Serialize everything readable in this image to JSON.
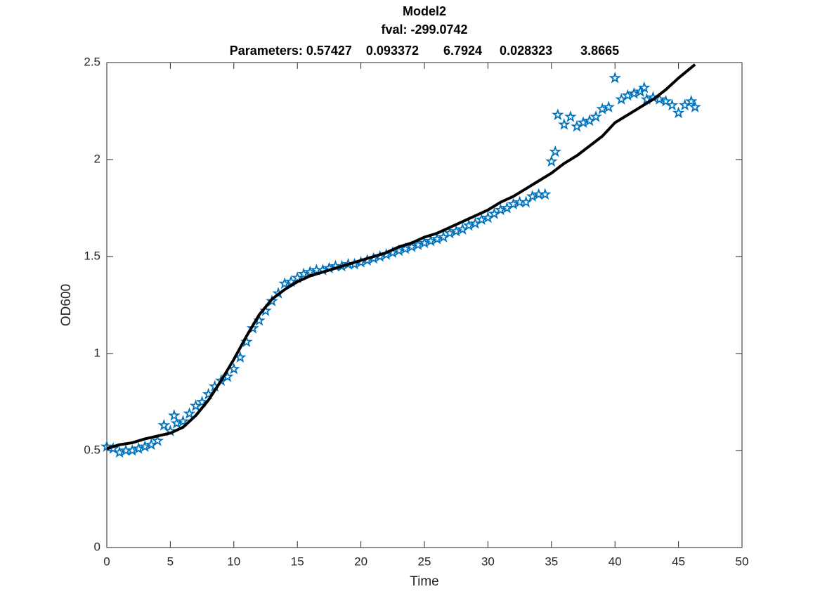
{
  "chart_data": {
    "type": "scatter",
    "title": "Model2",
    "subtitle": [
      "fval: -299.0742",
      "Parameters: 0.57427    0.093372       6.7924     0.028323        3.8665"
    ],
    "x_label": "Time",
    "y_label": "OD600",
    "xlim": [
      0,
      50
    ],
    "xticks": [
      0,
      5,
      10,
      15,
      20,
      25,
      30,
      35,
      40,
      45,
      50
    ],
    "ylim": [
      0,
      2.5
    ],
    "yticks": [
      0,
      0.5,
      1,
      1.5,
      2,
      2.5
    ],
    "grid": false,
    "series": [
      {
        "style": "markers",
        "color": "#0072bd",
        "x": [
          0,
          0.5,
          1,
          1.5,
          2,
          2.5,
          3,
          3.5,
          4,
          4.5,
          5,
          5.3,
          5.5,
          6,
          6.5,
          7,
          7.5,
          8,
          8.5,
          9,
          9.5,
          10,
          10.5,
          11,
          11.5,
          12,
          12.5,
          13,
          13.5,
          14,
          14.5,
          15,
          15.5,
          16,
          16.5,
          17,
          17.5,
          18,
          18.5,
          19,
          19.5,
          20,
          20.5,
          21,
          21.5,
          22,
          22.5,
          23,
          23.5,
          24,
          24.5,
          25,
          25.5,
          26,
          26.5,
          27,
          27.5,
          28,
          28.5,
          29,
          29.5,
          30,
          30.5,
          31,
          31.5,
          32,
          32.5,
          33,
          33.5,
          34,
          34.5,
          35,
          35.3,
          35.5,
          36,
          36.5,
          37,
          37.5,
          38,
          38.5,
          39,
          39.5,
          40,
          40.5,
          41,
          41.5,
          42,
          42.3,
          42.5,
          43,
          43.5,
          44,
          44.5,
          45,
          45.5,
          46,
          46.3
        ],
        "values": [
          0.52,
          0.51,
          0.49,
          0.5,
          0.5,
          0.51,
          0.52,
          0.53,
          0.55,
          0.63,
          0.6,
          0.68,
          0.64,
          0.65,
          0.69,
          0.73,
          0.75,
          0.79,
          0.83,
          0.86,
          0.88,
          0.92,
          0.98,
          1.06,
          1.13,
          1.17,
          1.22,
          1.27,
          1.31,
          1.36,
          1.37,
          1.39,
          1.41,
          1.42,
          1.43,
          1.43,
          1.44,
          1.45,
          1.45,
          1.46,
          1.46,
          1.47,
          1.48,
          1.49,
          1.5,
          1.51,
          1.52,
          1.53,
          1.54,
          1.55,
          1.56,
          1.57,
          1.58,
          1.59,
          1.6,
          1.62,
          1.63,
          1.64,
          1.66,
          1.67,
          1.69,
          1.7,
          1.72,
          1.74,
          1.75,
          1.77,
          1.78,
          1.78,
          1.81,
          1.82,
          1.82,
          1.99,
          2.04,
          2.23,
          2.18,
          2.22,
          2.17,
          2.19,
          2.2,
          2.22,
          2.26,
          2.27,
          2.42,
          2.31,
          2.33,
          2.34,
          2.35,
          2.37,
          2.31,
          2.32,
          2.31,
          2.3,
          2.28,
          2.24,
          2.28,
          2.3,
          2.27
        ]
      },
      {
        "style": "line",
        "color": "#000000",
        "x": [
          0,
          1,
          2,
          3,
          4,
          5,
          6,
          7,
          8,
          9,
          10,
          11,
          12,
          13,
          14,
          15,
          16,
          17,
          18,
          19,
          20,
          21,
          22,
          23,
          24,
          25,
          26,
          27,
          28,
          29,
          30,
          31,
          32,
          33,
          34,
          35,
          36,
          37,
          38,
          39,
          40,
          41,
          42,
          43,
          44,
          45,
          46.3
        ],
        "values": [
          0.51,
          0.53,
          0.54,
          0.56,
          0.575,
          0.59,
          0.62,
          0.68,
          0.76,
          0.86,
          0.97,
          1.09,
          1.2,
          1.28,
          1.33,
          1.37,
          1.4,
          1.42,
          1.44,
          1.46,
          1.48,
          1.5,
          1.52,
          1.55,
          1.57,
          1.6,
          1.62,
          1.65,
          1.68,
          1.71,
          1.74,
          1.78,
          1.81,
          1.85,
          1.89,
          1.93,
          1.98,
          2.02,
          2.07,
          2.12,
          2.19,
          2.23,
          2.27,
          2.31,
          2.36,
          2.42,
          2.49
        ]
      }
    ]
  }
}
